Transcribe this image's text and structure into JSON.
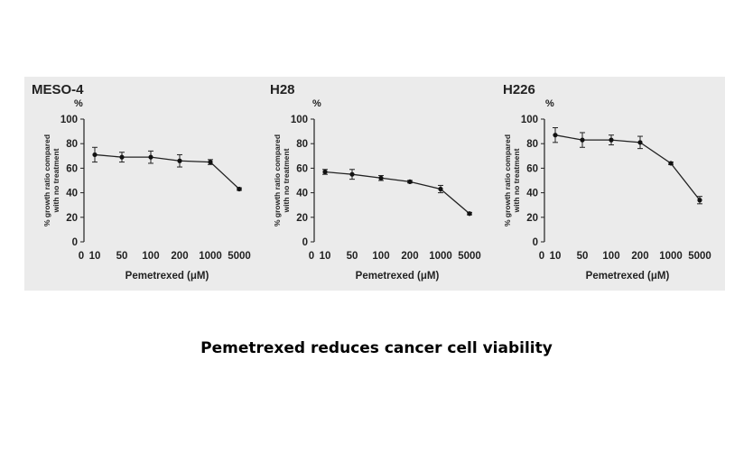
{
  "caption": "Pemetrexed reduces cancer cell viability",
  "chart_data": [
    {
      "type": "line",
      "title": "MESO-4",
      "unit_label": "%",
      "ylabel": "% growth ratio compared with no treatment",
      "xlabel": "Pemetrexed (μM)",
      "x_tick_labels": [
        "0",
        "10",
        "50",
        "100",
        "200",
        "1000",
        "5000"
      ],
      "y_ticks": [
        0,
        20,
        40,
        60,
        80,
        100
      ],
      "ylim": [
        0,
        100
      ],
      "series": [
        {
          "x": [
            "10",
            "50",
            "100",
            "200",
            "1000",
            "5000"
          ],
          "values": [
            71,
            69,
            69,
            66,
            65,
            43
          ],
          "errors": [
            6,
            4,
            5,
            5,
            2,
            1
          ]
        }
      ]
    },
    {
      "type": "line",
      "title": "H28",
      "unit_label": "%",
      "ylabel": "% growth ratio compared with no treatment",
      "xlabel": "Pemetrexed (μM)",
      "x_tick_labels": [
        "0",
        "10",
        "50",
        "100",
        "200",
        "1000",
        "5000"
      ],
      "y_ticks": [
        0,
        20,
        40,
        60,
        80,
        100
      ],
      "ylim": [
        0,
        100
      ],
      "series": [
        {
          "x": [
            "10",
            "50",
            "100",
            "200",
            "1000",
            "5000"
          ],
          "values": [
            57,
            55,
            52,
            49,
            43,
            23
          ],
          "errors": [
            2,
            4,
            2,
            1,
            3,
            1
          ]
        }
      ]
    },
    {
      "type": "line",
      "title": "H226",
      "unit_label": "%",
      "ylabel": "% growth ratio compared with no treatment",
      "xlabel": "Pemetrexed (μM)",
      "x_tick_labels": [
        "0",
        "10",
        "50",
        "100",
        "200",
        "1000",
        "5000"
      ],
      "y_ticks": [
        0,
        20,
        40,
        60,
        80,
        100
      ],
      "ylim": [
        0,
        100
      ],
      "series": [
        {
          "x": [
            "10",
            "50",
            "100",
            "200",
            "1000",
            "5000"
          ],
          "values": [
            87,
            83,
            83,
            81,
            64,
            34
          ],
          "errors": [
            6,
            6,
            4,
            5,
            1,
            3
          ]
        }
      ]
    }
  ]
}
